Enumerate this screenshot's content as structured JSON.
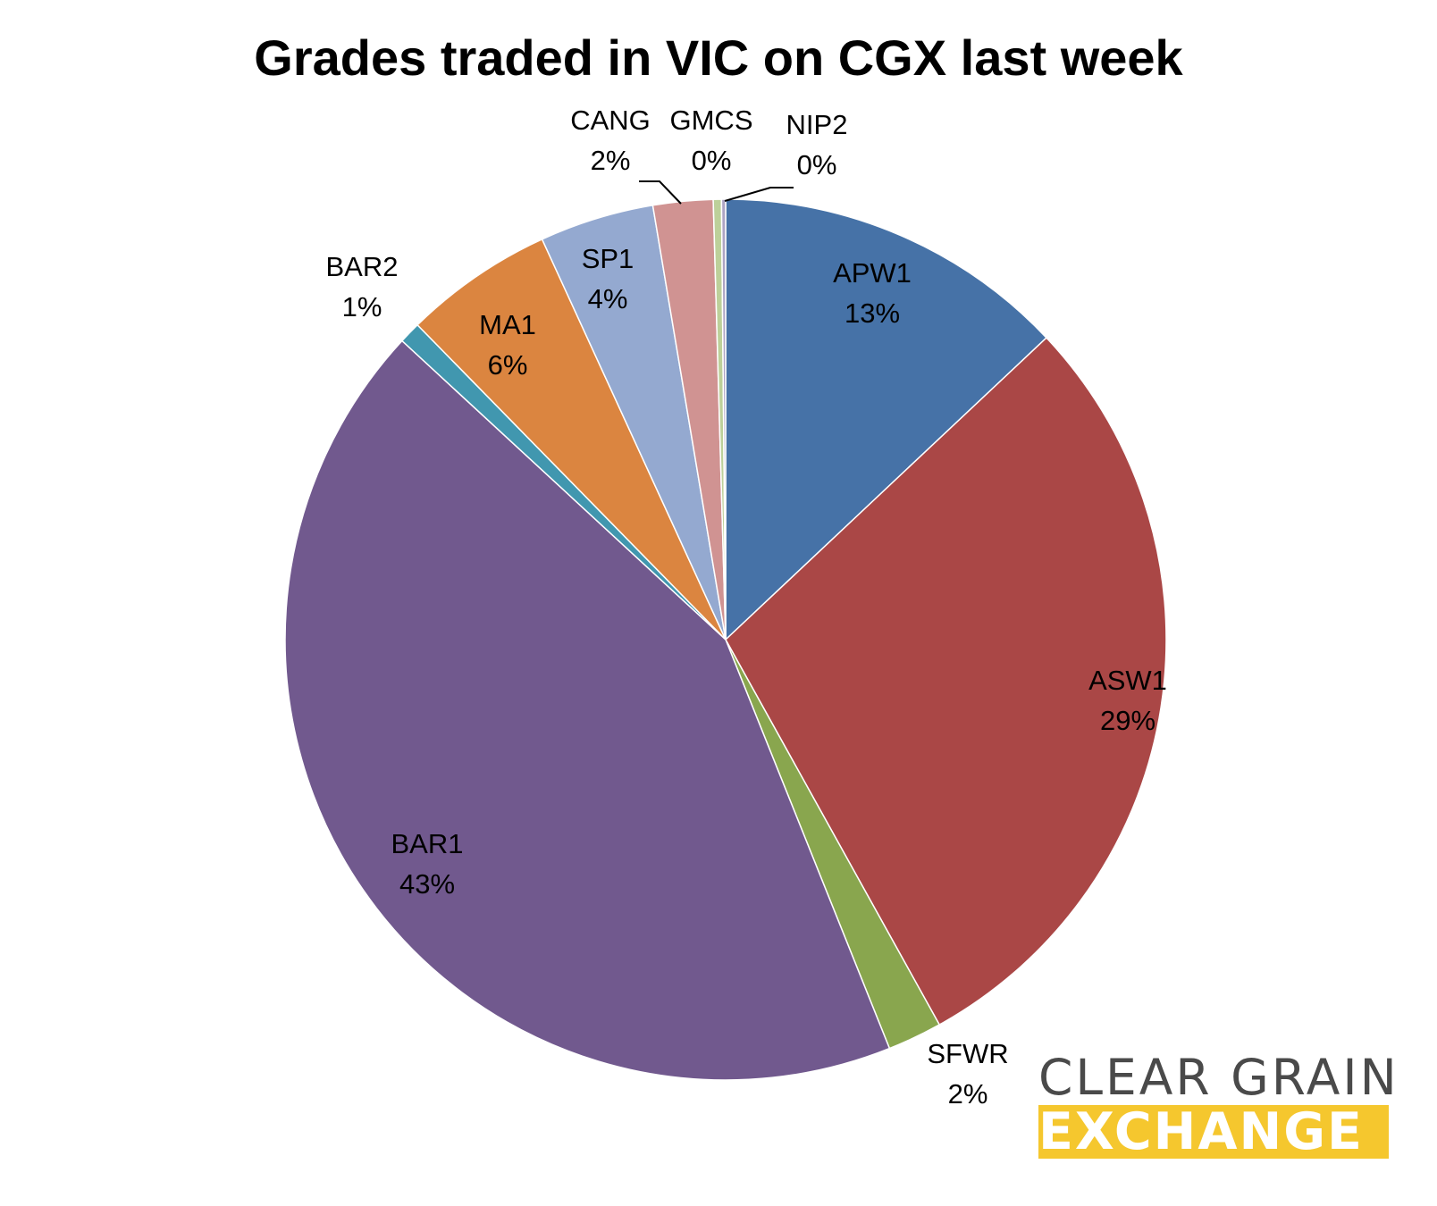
{
  "chart_data": {
    "type": "pie",
    "title": "Grades traded in VIC on CGX last week",
    "slices": [
      {
        "name": "APW1",
        "value": 13,
        "label": "13%",
        "color": "#4672a7"
      },
      {
        "name": "ASW1",
        "value": 29,
        "label": "29%",
        "color": "#aa4746"
      },
      {
        "name": "SFWR",
        "value": 2,
        "label": "2%",
        "color": "#89a64e"
      },
      {
        "name": "BAR1",
        "value": 43,
        "label": "43%",
        "color": "#71598e"
      },
      {
        "name": "BAR2",
        "value": 0.8,
        "label": "1%",
        "color": "#4197af"
      },
      {
        "name": "MA1",
        "value": 5.5,
        "label": "6%",
        "color": "#db8540"
      },
      {
        "name": "SP1",
        "value": 4.2,
        "label": "4%",
        "color": "#94a9d0"
      },
      {
        "name": "CANG",
        "value": 2.2,
        "label": "2%",
        "color": "#d09392"
      },
      {
        "name": "GMCS",
        "value": 0.3,
        "label": "0%",
        "color": "#bdd09a"
      },
      {
        "name": "NIP2",
        "value": 0.15,
        "label": "0%",
        "color": "#ada4c4"
      }
    ]
  },
  "logo": {
    "line1": "CLEAR GRAIN",
    "line2": "EXCHANGE"
  }
}
